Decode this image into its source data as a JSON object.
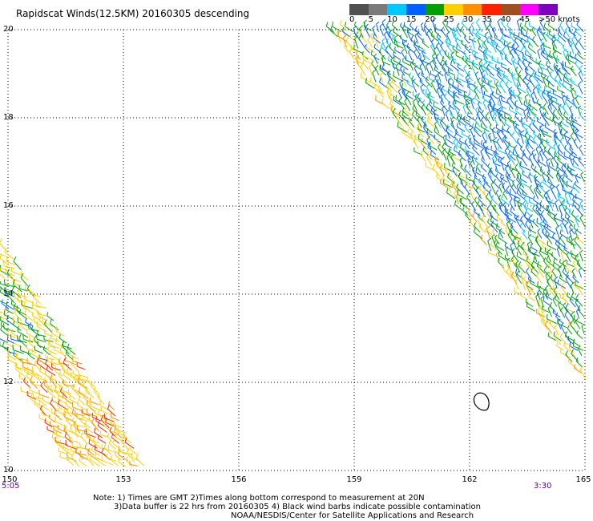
{
  "title": "Rapidscat Winds(12.5KM) 20160305 descending",
  "speed_scale": {
    "labels": [
      "0",
      "5",
      "10",
      "15",
      "20",
      "25",
      "30",
      "35",
      "40",
      "45",
      ">50 knots"
    ],
    "colors": [
      "#505050",
      "#7a7a7a",
      "#00c8ff",
      "#0060ff",
      "#00a000",
      "#ffd000",
      "#ff9000",
      "#ff2000",
      "#a05020",
      "#ff00ff",
      "#8000c0"
    ]
  },
  "map": {
    "x_ticks": [
      "150",
      "153",
      "156",
      "159",
      "162",
      "165"
    ],
    "y_ticks": [
      "20",
      "18",
      "16",
      "14",
      "12",
      "10"
    ],
    "x_range_deg_e": [
      150,
      165
    ],
    "y_range_deg_n": [
      10,
      20
    ],
    "grid": "dotted",
    "time_left": "5:05",
    "time_right": "3:30",
    "swaths": [
      {
        "description": "east swath",
        "edge_start": [
          158.4,
          20
        ],
        "edge_end": [
          165,
          12
        ],
        "right_edge": 165
      },
      {
        "description": "west swath",
        "edge_start": [
          150,
          15.1
        ],
        "edge_end": [
          153.8,
          10
        ],
        "left_edge": 150
      }
    ],
    "contamination_marker": {
      "lon": 162.3,
      "lat": 11.55
    }
  },
  "notes": {
    "line1": "Note: 1) Times are GMT 2)Times along bottom correspond to measurement at 20N",
    "line2": "3)Data buffer is 22 hrs from 20160305 4) Black wind barbs indicate possible contamination",
    "line3": "NOAA/NESDIS/Center for Satellite Applications and Research"
  }
}
